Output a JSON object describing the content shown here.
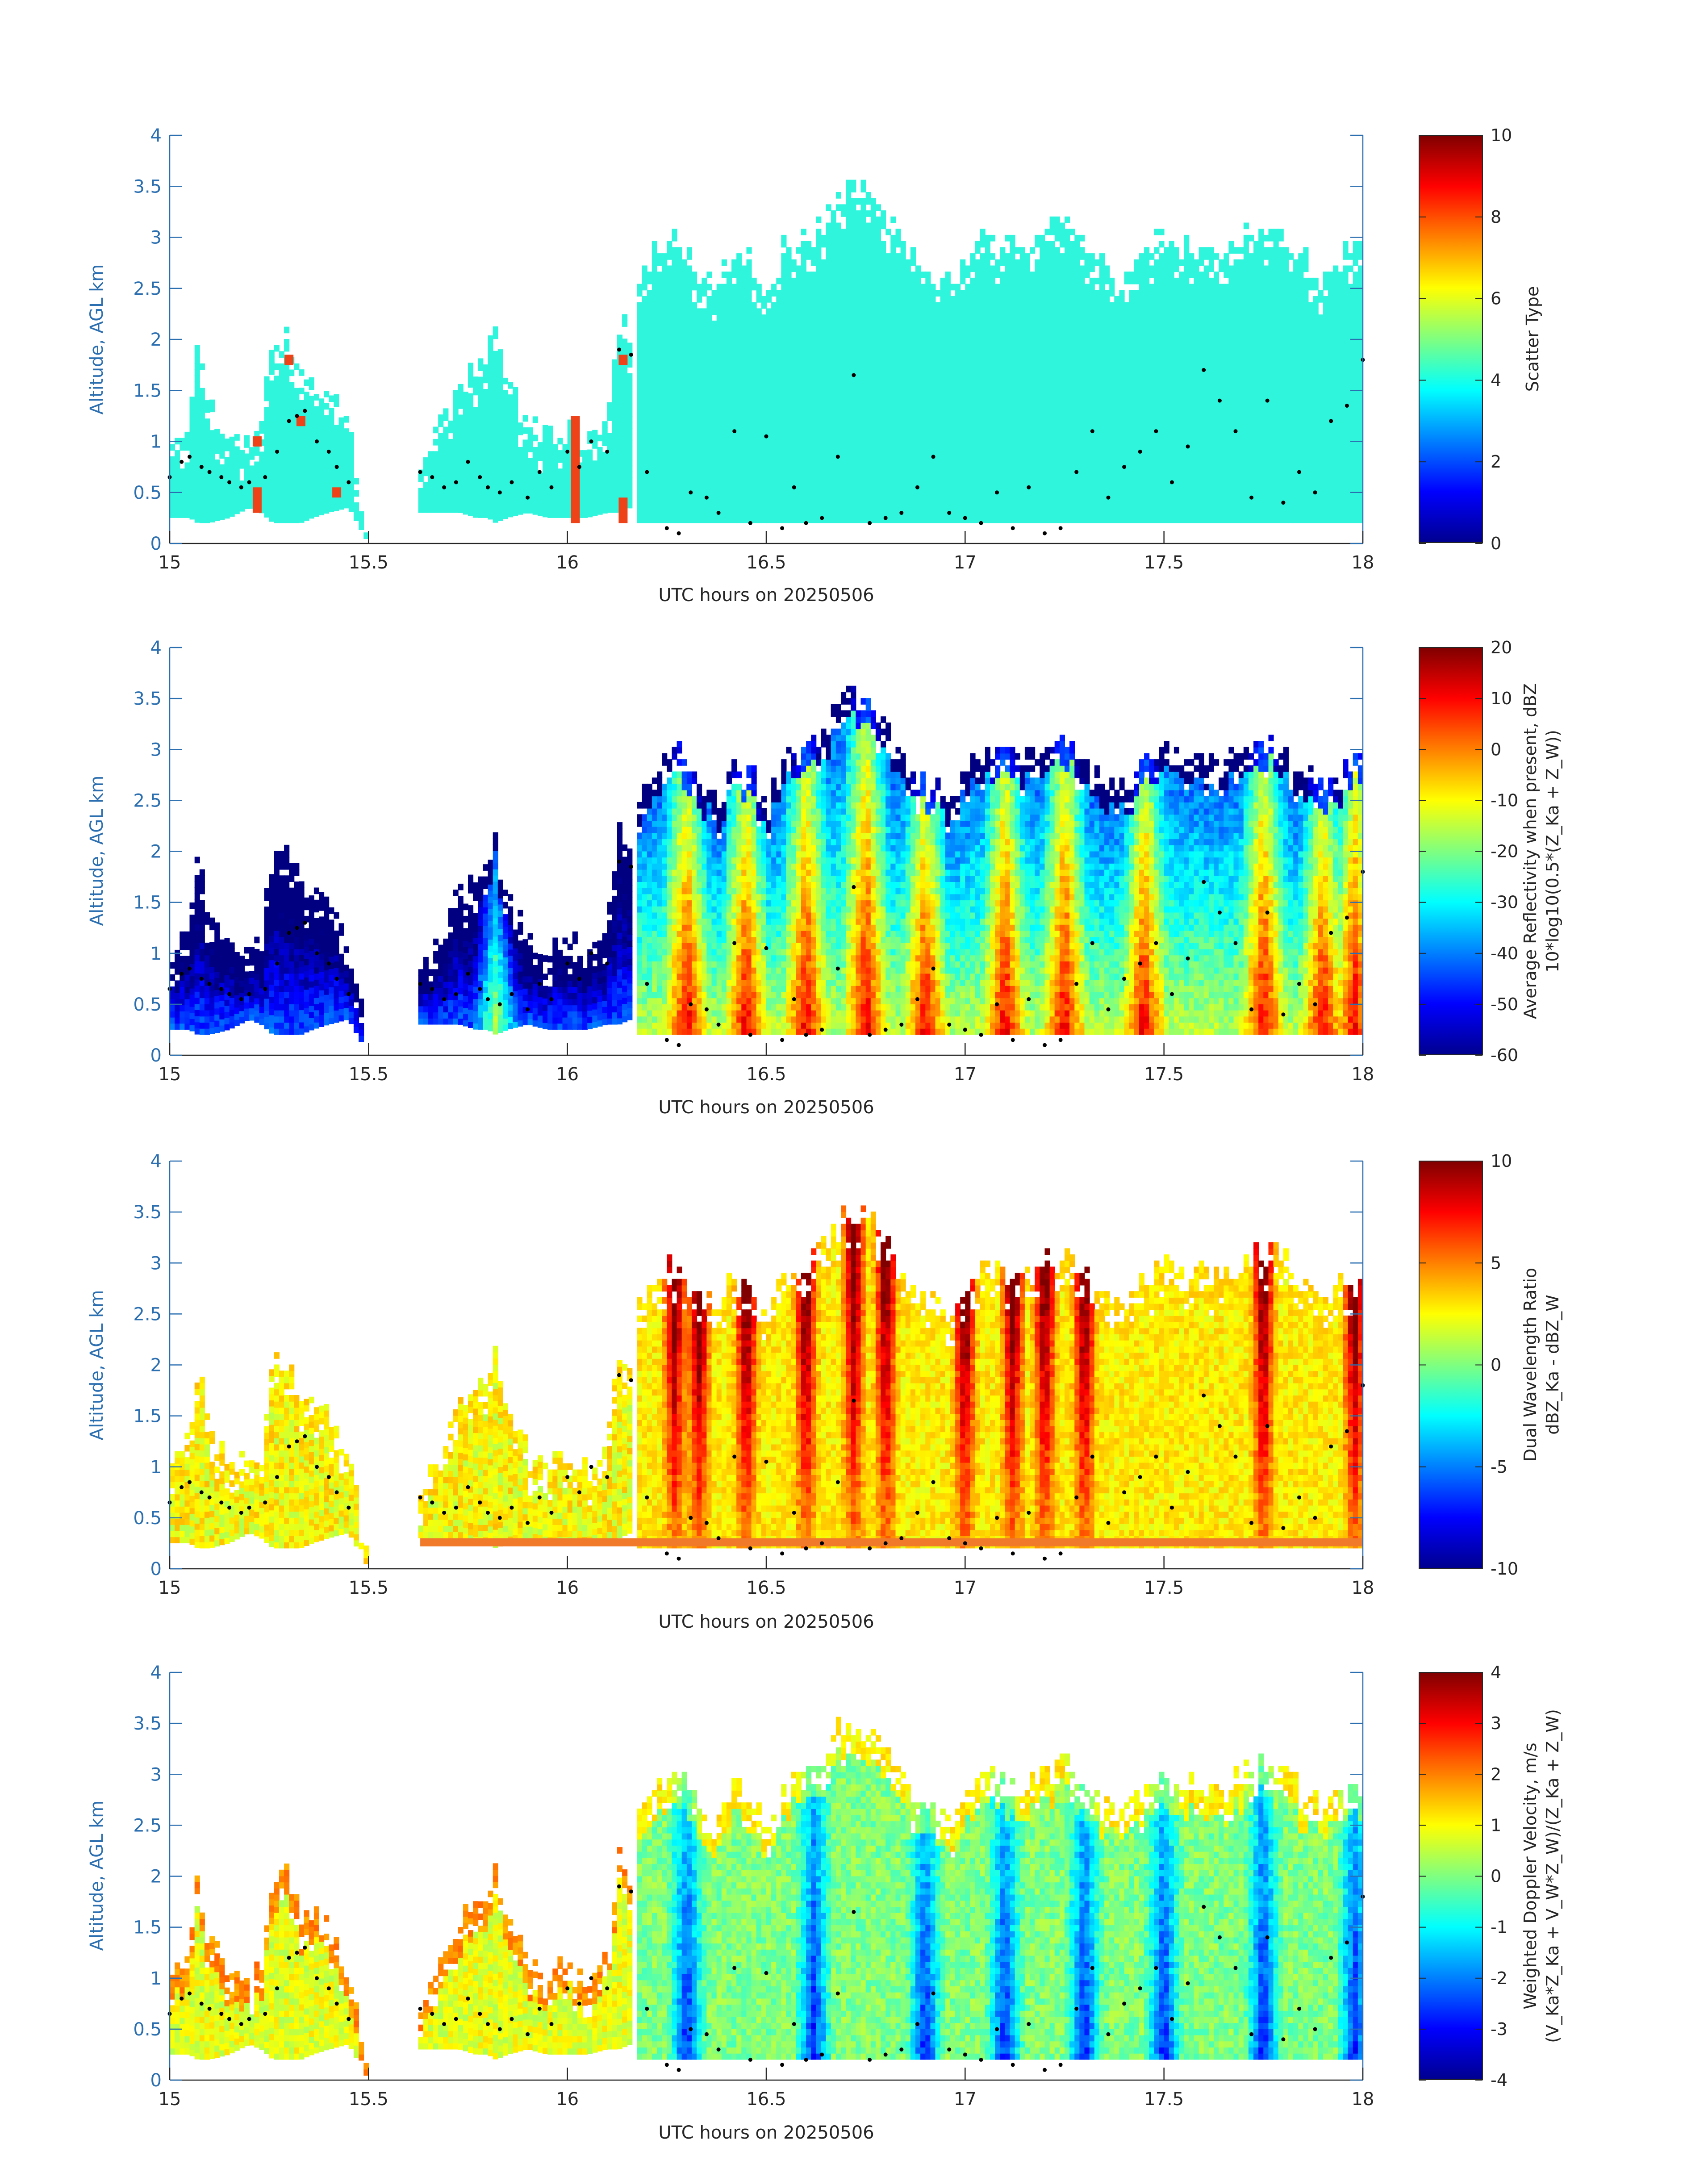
{
  "colors": {
    "axis_blue": "#2c6fb0",
    "scatter_cloud": "#2ff5dc",
    "scatter_precip": "#ee4218",
    "text": "#262626",
    "marker": "#000000"
  },
  "colormap": "jet",
  "chart_data": [
    {
      "type": "heatmap",
      "variable": "scatter_type",
      "ylabel": "Altitude, AGL km",
      "xlabel": "UTC hours on 20250506",
      "xlim": [
        15,
        18
      ],
      "ylim": [
        0,
        4
      ],
      "xticks": [
        "15",
        "15.5",
        "16",
        "16.5",
        "17",
        "17.5",
        "18"
      ],
      "yticks": [
        "0",
        "0.5",
        "1",
        "1.5",
        "2",
        "2.5",
        "3",
        "3.5",
        "4"
      ],
      "colorbar": {
        "label_lines": [
          "Scatter Type"
        ],
        "clim": [
          0,
          10
        ],
        "ticks": [
          "0",
          "2",
          "4",
          "6",
          "8",
          "10"
        ]
      },
      "categories_present": [
        4,
        9
      ]
    },
    {
      "type": "heatmap",
      "variable": "reflectivity",
      "ylabel": "Altitude, AGL km",
      "xlabel": "UTC hours on 20250506",
      "xlim": [
        15,
        18
      ],
      "ylim": [
        0,
        4
      ],
      "xticks": [
        "15",
        "15.5",
        "16",
        "16.5",
        "17",
        "17.5",
        "18"
      ],
      "yticks": [
        "0",
        "0.5",
        "1",
        "1.5",
        "2",
        "2.5",
        "3",
        "3.5",
        "4"
      ],
      "colorbar": {
        "label_lines": [
          "Average Reflectivity when present, dBZ",
          "10*log10(0.5*(Z_Ka + Z_W))"
        ],
        "clim": [
          -60,
          20
        ],
        "ticks": [
          "-60",
          "-50",
          "-40",
          "-30",
          "-20",
          "-10",
          "0",
          "10",
          "20"
        ]
      }
    },
    {
      "type": "heatmap",
      "variable": "dual_wavelength_ratio",
      "ylabel": "Altitude, AGL km",
      "xlabel": "UTC hours on 20250506",
      "xlim": [
        15,
        18
      ],
      "ylim": [
        0,
        4
      ],
      "xticks": [
        "15",
        "15.5",
        "16",
        "16.5",
        "17",
        "17.5",
        "18"
      ],
      "yticks": [
        "0",
        "0.5",
        "1",
        "1.5",
        "2",
        "2.5",
        "3",
        "3.5",
        "4"
      ],
      "colorbar": {
        "label_lines": [
          "Dual Wavelength Ratio",
          "dBZ_Ka - dBZ_W"
        ],
        "clim": [
          -10,
          10
        ],
        "ticks": [
          "-10",
          "-5",
          "0",
          "5",
          "10"
        ]
      }
    },
    {
      "type": "heatmap",
      "variable": "doppler_velocity",
      "ylabel": "Altitude, AGL km",
      "xlabel": "UTC hours on 20250506",
      "xlim": [
        15,
        18
      ],
      "ylim": [
        0,
        4
      ],
      "xticks": [
        "15",
        "15.5",
        "16",
        "16.5",
        "17",
        "17.5",
        "18"
      ],
      "yticks": [
        "0",
        "0.5",
        "1",
        "1.5",
        "2",
        "2.5",
        "3",
        "3.5",
        "4"
      ],
      "colorbar": {
        "label_lines": [
          "Weighted Doppler Velocity, m/s",
          "(V_Ka*Z_Ka + V_W*Z_W)/(Z_Ka + Z_W)"
        ],
        "clim": [
          -4,
          4
        ],
        "ticks": [
          "-4",
          "-3",
          "-2",
          "-1",
          "0",
          "1",
          "2",
          "3",
          "4"
        ]
      }
    }
  ],
  "echo_envelope": {
    "segments": [
      {
        "t": [
          15.0,
          15.05,
          15.07,
          15.1,
          15.15,
          15.2,
          15.23,
          15.26,
          15.3,
          15.33,
          15.36,
          15.4,
          15.45,
          15.5
        ],
        "top": [
          1.0,
          1.2,
          2.0,
          1.3,
          1.05,
          0.95,
          1.1,
          1.95,
          2.05,
          1.6,
          1.55,
          1.5,
          1.1,
          0.0
        ],
        "bottom": [
          0.25,
          0.25,
          0.2,
          0.2,
          0.25,
          0.35,
          0.3,
          0.2,
          0.2,
          0.2,
          0.25,
          0.3,
          0.35,
          0.0
        ]
      },
      {
        "t": [
          15.62,
          15.66,
          15.7,
          15.73,
          15.77,
          15.8,
          15.82,
          15.85,
          15.9,
          15.95,
          16.0,
          16.05,
          16.1,
          16.13,
          16.16
        ],
        "top": [
          0.7,
          0.95,
          1.3,
          1.6,
          1.7,
          1.9,
          2.1,
          1.55,
          1.15,
          1.0,
          1.15,
          0.9,
          1.2,
          2.2,
          2.0
        ],
        "bottom": [
          0.3,
          0.3,
          0.3,
          0.3,
          0.25,
          0.25,
          0.2,
          0.25,
          0.3,
          0.25,
          0.25,
          0.25,
          0.3,
          0.3,
          0.35
        ]
      },
      {
        "t": [
          16.18,
          16.22,
          16.26,
          16.3,
          16.34,
          16.38,
          16.42,
          16.46,
          16.5,
          16.55,
          16.6,
          16.64,
          16.68,
          16.72,
          16.76,
          16.8,
          16.84,
          16.88,
          16.92,
          16.96,
          17.0,
          17.05,
          17.1,
          17.15,
          17.2,
          17.25,
          17.3,
          17.35,
          17.4,
          17.45,
          17.5,
          17.55,
          17.6,
          17.65,
          17.7,
          17.75,
          17.8,
          17.85,
          17.9,
          17.95,
          18.0
        ],
        "top": [
          2.5,
          2.8,
          3.0,
          2.9,
          2.6,
          2.5,
          2.9,
          2.8,
          2.4,
          2.9,
          3.0,
          3.1,
          3.4,
          3.5,
          3.4,
          3.3,
          2.9,
          2.7,
          2.6,
          2.5,
          2.7,
          3.0,
          2.9,
          2.9,
          3.0,
          3.1,
          2.9,
          2.7,
          2.6,
          2.8,
          3.0,
          2.9,
          2.9,
          2.85,
          3.0,
          3.1,
          3.0,
          2.8,
          2.6,
          2.8,
          2.9
        ],
        "bottom": [
          0.2,
          0.2,
          0.2,
          0.2,
          0.2,
          0.2,
          0.2,
          0.2,
          0.2,
          0.2,
          0.2,
          0.2,
          0.2,
          0.2,
          0.2,
          0.2,
          0.2,
          0.2,
          0.2,
          0.2,
          0.2,
          0.2,
          0.2,
          0.2,
          0.2,
          0.2,
          0.2,
          0.2,
          0.2,
          0.2,
          0.2,
          0.2,
          0.2,
          0.2,
          0.2,
          0.2,
          0.2,
          0.2,
          0.2,
          0.2,
          0.2
        ]
      }
    ],
    "precip_columns": [
      {
        "t": 16.02,
        "bottom": 0.2,
        "top": 1.25
      },
      {
        "t": 16.14,
        "bottom": 0.2,
        "top": 0.45
      },
      {
        "t": 15.22,
        "bottom": 0.3,
        "top": 0.55
      },
      {
        "t": 15.3,
        "bottom": 1.75,
        "top": 1.85
      },
      {
        "t": 15.33,
        "bottom": 1.15,
        "top": 1.25
      },
      {
        "t": 15.42,
        "bottom": 0.45,
        "top": 0.55
      },
      {
        "t": 15.22,
        "bottom": 0.95,
        "top": 1.05
      },
      {
        "t": 16.14,
        "bottom": 1.75,
        "top": 1.85
      }
    ],
    "features": {
      "high_dbz_columns": [
        15.82,
        16.3,
        16.45,
        16.6,
        16.75,
        16.9,
        17.1,
        17.25,
        17.45,
        17.75,
        17.9,
        17.98
      ],
      "high_dwr_columns": [
        15.82,
        16.27,
        16.33,
        16.45,
        16.6,
        16.72,
        16.8,
        17.0,
        17.12,
        17.2,
        17.3,
        17.75,
        17.98
      ],
      "downdraft_columns": [
        15.82,
        16.3,
        16.62,
        16.9,
        17.1,
        17.3,
        17.5,
        17.75,
        17.98
      ]
    }
  },
  "markers": {
    "t": [
      15.0,
      15.03,
      15.05,
      15.08,
      15.1,
      15.13,
      15.15,
      15.18,
      15.2,
      15.24,
      15.27,
      15.3,
      15.32,
      15.34,
      15.37,
      15.4,
      15.42,
      15.45,
      15.63,
      15.66,
      15.69,
      15.72,
      15.75,
      15.78,
      15.8,
      15.83,
      15.86,
      15.9,
      15.93,
      15.96,
      16.0,
      16.03,
      16.06,
      16.1,
      16.13,
      16.16,
      16.2,
      16.25,
      16.28,
      16.31,
      16.35,
      16.38,
      16.42,
      16.46,
      16.5,
      16.54,
      16.57,
      16.6,
      16.64,
      16.68,
      16.72,
      16.76,
      16.8,
      16.84,
      16.88,
      16.92,
      16.96,
      17.0,
      17.04,
      17.08,
      17.12,
      17.16,
      17.2,
      17.24,
      17.28,
      17.32,
      17.36,
      17.4,
      17.44,
      17.48,
      17.52,
      17.56,
      17.6,
      17.64,
      17.68,
      17.72,
      17.76,
      17.8,
      17.84,
      17.88,
      17.92,
      17.96,
      18.0
    ],
    "alt": [
      0.65,
      0.8,
      0.85,
      0.75,
      0.7,
      0.65,
      0.6,
      0.55,
      0.6,
      0.65,
      0.9,
      1.2,
      1.25,
      1.3,
      1.0,
      0.9,
      0.75,
      0.6,
      0.7,
      0.65,
      0.55,
      0.6,
      0.8,
      0.65,
      0.55,
      0.5,
      0.6,
      0.45,
      0.7,
      0.55,
      0.9,
      0.75,
      1.0,
      0.9,
      1.9,
      1.85,
      0.7,
      0.15,
      0.1,
      0.5,
      0.45,
      0.3,
      1.1,
      0.2,
      1.05,
      0.15,
      0.55,
      0.2,
      0.25,
      0.85,
      1.65,
      0.2,
      0.25,
      0.3,
      0.55,
      0.85,
      0.3,
      0.25,
      0.2,
      0.5,
      0.15,
      0.55,
      0.1,
      0.15,
      0.7,
      1.1,
      0.45,
      0.75,
      0.9,
      1.1,
      0.6,
      0.95,
      1.7,
      1.4,
      1.1,
      0.45,
      1.4,
      0.4,
      0.7,
      0.5,
      1.2,
      1.35,
      1.8
    ]
  }
}
